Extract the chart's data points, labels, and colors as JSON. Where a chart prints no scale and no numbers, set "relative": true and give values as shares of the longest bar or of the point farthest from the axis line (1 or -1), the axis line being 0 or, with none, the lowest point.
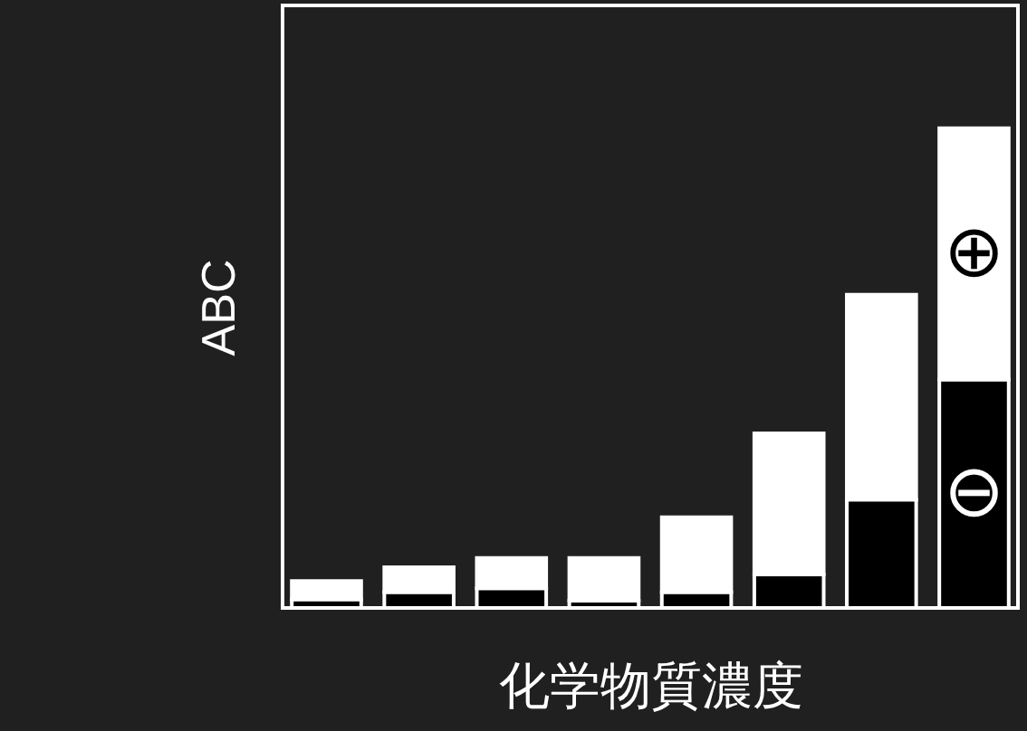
{
  "chart_data": {
    "type": "bar",
    "relative": true,
    "stacked": true,
    "xlabel": "化学物質濃度",
    "ylabel": "ABC",
    "categories": [
      null,
      null,
      null,
      null,
      null,
      null,
      null,
      null
    ],
    "series": [
      {
        "color": "#000000",
        "values": [
          0.018,
          0.033,
          0.041,
          0.015,
          0.033,
          0.07,
          0.226,
          0.476
        ]
      },
      {
        "color": "#ffffff",
        "values": [
          0.038,
          0.052,
          0.063,
          0.089,
          0.156,
          0.294,
          0.427,
          0.524
        ]
      }
    ],
    "annotations": [
      "⊕",
      "⊖"
    ]
  }
}
